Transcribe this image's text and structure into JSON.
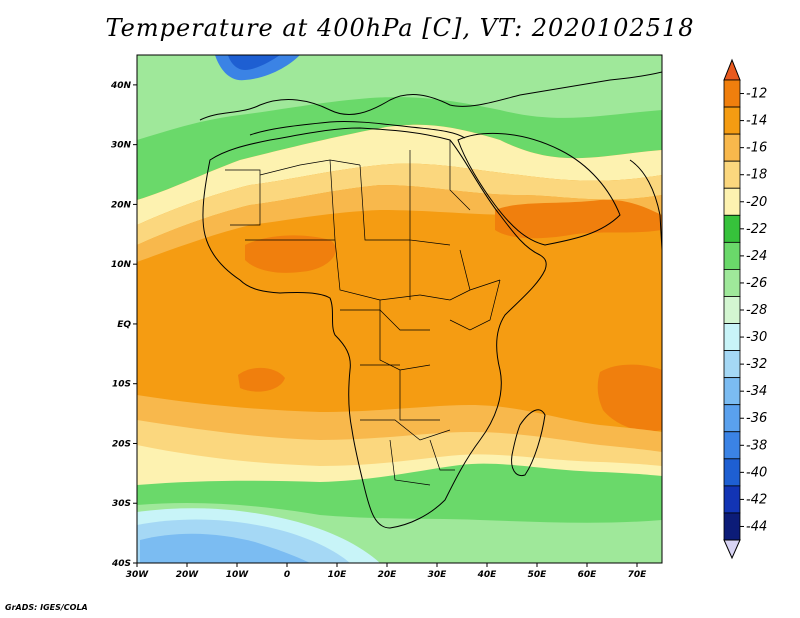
{
  "map": {
    "title": "Temperature at 400hPa [C], VT: 2020102518",
    "credit": "GrADS: IGES/COLA",
    "lon_labels": [
      "30W",
      "20W",
      "10W",
      "0",
      "10E",
      "20E",
      "30E",
      "40E",
      "50E",
      "60E",
      "70E"
    ],
    "lat_labels": [
      "40N",
      "30N",
      "20N",
      "10N",
      "EQ",
      "10S",
      "20S",
      "30S",
      "40S"
    ],
    "colorbar": {
      "levels": [
        "-12",
        "-14",
        "-16",
        "-18",
        "-20",
        "-22",
        "-24",
        "-26",
        "-28",
        "-30",
        "-32",
        "-34",
        "-36",
        "-38",
        "-40",
        "-42",
        "-44"
      ],
      "colors": [
        "#e85a1e",
        "#f07f0d",
        "#f59c12",
        "#f8b84c",
        "#fbd77e",
        "#fdf2b0",
        "#36c23b",
        "#6ad96a",
        "#9fe89a",
        "#d3f6d1",
        "#c8f4f8",
        "#a5d8f5",
        "#7bbcf2",
        "#5aa1ee",
        "#3b83e5",
        "#1e5fd2",
        "#1234b4",
        "#0c1c78",
        "#d8d4f4"
      ]
    }
  }
}
